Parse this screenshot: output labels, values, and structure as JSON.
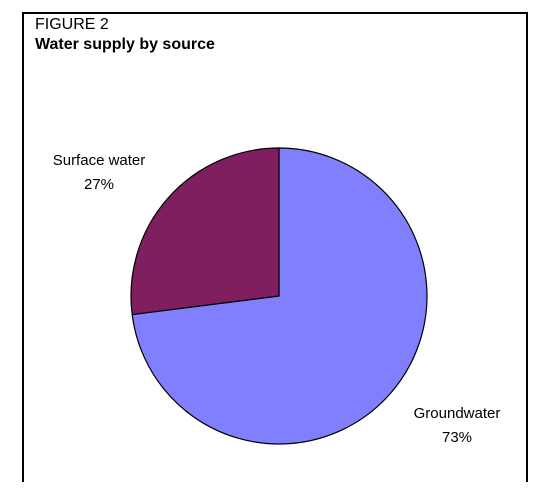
{
  "figure": {
    "label": "FIGURE 2",
    "title": "Water supply by source"
  },
  "chart_data": {
    "type": "pie",
    "title": "Water supply by source",
    "start_angle_deg": 90,
    "direction": "clockwise",
    "slices": [
      {
        "name": "Groundwater",
        "value": 73,
        "label_pct": "73%",
        "color": "#8080ff"
      },
      {
        "name": "Surface water",
        "value": 27,
        "label_pct": "27%",
        "color": "#7f1f5f"
      }
    ]
  }
}
